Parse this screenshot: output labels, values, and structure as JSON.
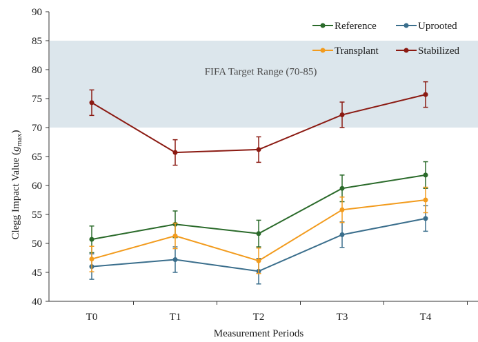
{
  "chart_data": {
    "type": "line",
    "categories": [
      "T0",
      "T1",
      "T2",
      "T3",
      "T4"
    ],
    "xlabel": "Measurement Periods",
    "ylabel_prefix": "Clegg Impact Value (",
    "ylabel_var": "g",
    "ylabel_sub": "max",
    "ylabel_suffix": ")",
    "ylim": [
      40,
      90
    ],
    "yticks": [
      40,
      45,
      50,
      55,
      60,
      65,
      70,
      75,
      80,
      85,
      90
    ],
    "grid": false,
    "legend_position": "top-right",
    "target_band": {
      "label": "FIFA Target Range (70-85)",
      "min": 70,
      "max": 85,
      "color": "#dce6ec"
    },
    "series": [
      {
        "name": "Reference",
        "color": "#2a6a2a",
        "values": [
          50.7,
          53.3,
          51.7,
          59.5,
          61.8
        ],
        "errors": [
          2.3,
          2.3,
          2.3,
          2.3,
          2.3
        ]
      },
      {
        "name": "Uprooted",
        "color": "#3a6e8c",
        "values": [
          46.0,
          47.2,
          45.2,
          51.5,
          54.3
        ],
        "errors": [
          2.2,
          2.2,
          2.2,
          2.2,
          2.2
        ]
      },
      {
        "name": "Transplant",
        "color": "#f29b1d",
        "values": [
          47.3,
          51.3,
          47.0,
          55.8,
          57.5
        ],
        "errors": [
          2.2,
          2.2,
          2.2,
          2.2,
          2.2
        ]
      },
      {
        "name": "Stabilized",
        "color": "#8b1a12",
        "values": [
          74.3,
          65.7,
          66.2,
          72.2,
          75.7
        ],
        "errors": [
          2.2,
          2.2,
          2.2,
          2.2,
          2.2
        ]
      }
    ]
  }
}
